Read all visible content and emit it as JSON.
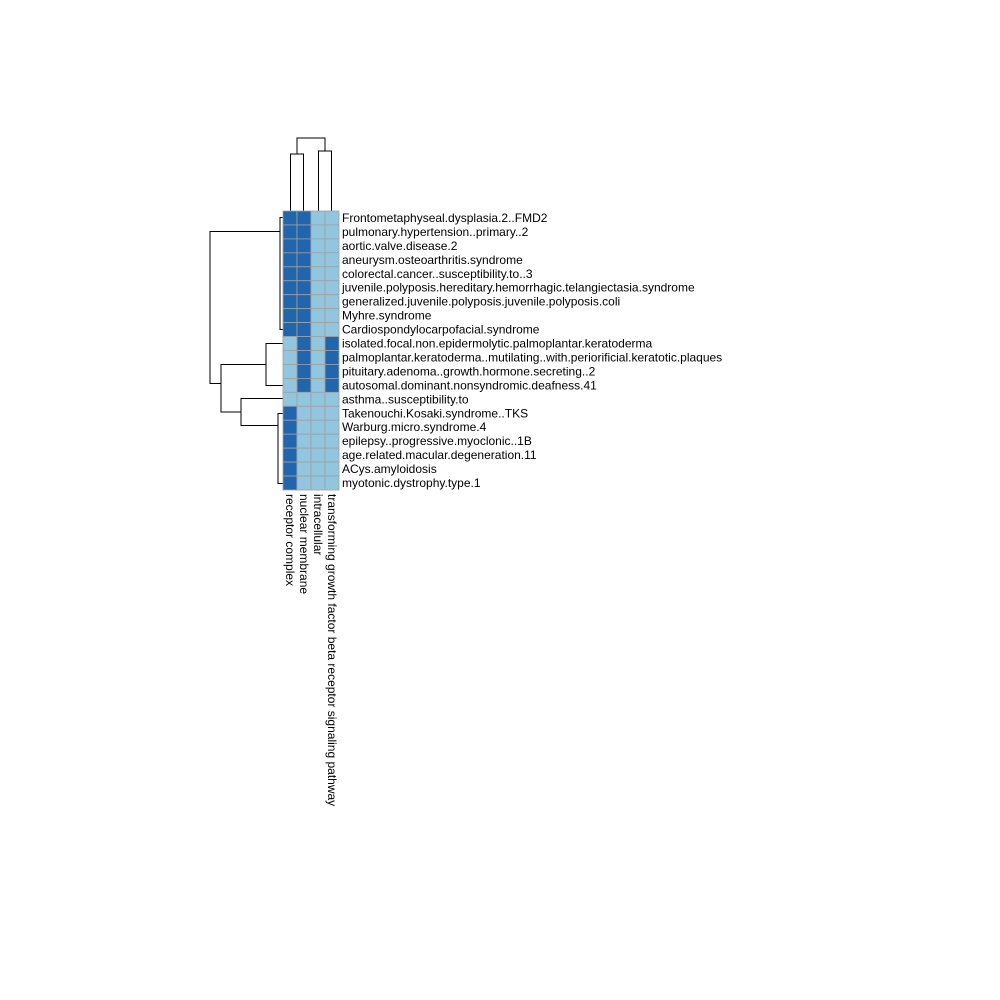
{
  "chart_data": {
    "type": "heatmap",
    "rows": [
      "Frontometaphyseal.dysplasia.2..FMD2",
      "pulmonary.hypertension..primary..2",
      "aortic.valve.disease.2",
      "aneurysm.osteoarthritis.syndrome",
      "colorectal.cancer..susceptibility.to..3",
      "juvenile.polyposis.hereditary.hemorrhagic.telangiectasia.syndrome",
      "generalized.juvenile.polyposis.juvenile.polyposis.coli",
      "Myhre.syndrome",
      "Cardiospondylocarpofacial.syndrome",
      "isolated.focal.non.epidermolytic.palmoplantar.keratoderma",
      "palmoplantar.keratoderma..mutilating..with.periorificial.keratotic.plaques",
      "pituitary.adenoma..growth.hormone.secreting..2",
      "autosomal.dominant.nonsyndromic.deafness.41",
      "asthma..susceptibility.to",
      "Takenouchi.Kosaki.syndrome..TKS",
      "Warburg.micro.syndrome.4",
      "epilepsy..progressive.myoclonic..1B",
      "age.related.macular.degeneration.11",
      "ACys.amyloidosis",
      "myotonic.dystrophy.type.1"
    ],
    "columns": [
      "receptor complex",
      "nuclear membrane",
      "intracellular",
      "transforming growth factor beta receptor signaling pathway"
    ],
    "values": [
      [
        1,
        1,
        0,
        0
      ],
      [
        1,
        1,
        0,
        0
      ],
      [
        1,
        1,
        0,
        0
      ],
      [
        1,
        1,
        0,
        0
      ],
      [
        1,
        1,
        0,
        0
      ],
      [
        1,
        1,
        0,
        0
      ],
      [
        1,
        1,
        0,
        0
      ],
      [
        1,
        1,
        0,
        0
      ],
      [
        1,
        1,
        0,
        0
      ],
      [
        0,
        1,
        0,
        1
      ],
      [
        0,
        1,
        0,
        1
      ],
      [
        0,
        1,
        0,
        1
      ],
      [
        0,
        1,
        0,
        1
      ],
      [
        0,
        0,
        0,
        0
      ],
      [
        1,
        0,
        0,
        0
      ],
      [
        1,
        0,
        0,
        0
      ],
      [
        1,
        0,
        0,
        0
      ],
      [
        1,
        0,
        0,
        0
      ],
      [
        1,
        0,
        0,
        0
      ],
      [
        1,
        0,
        0,
        0
      ]
    ],
    "colors": {
      "present": "#2166ac",
      "absent": "#92c5de",
      "grid": "#a0a0a0",
      "tree": "#000000"
    },
    "row_dendrogram": "((rows 1-9),((rows 10-13),(row 14,(rows 15-20))))",
    "column_dendrogram": "((receptor complex, nuclear membrane),(intracellular, transforming growth factor beta receptor signaling pathway))"
  }
}
